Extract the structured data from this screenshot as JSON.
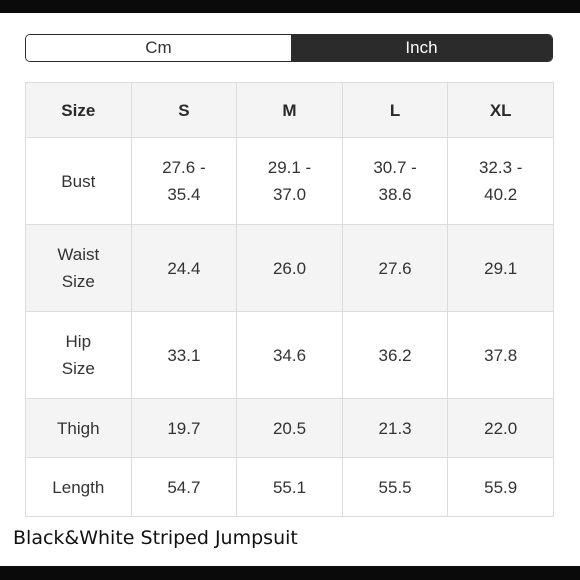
{
  "unit_toggle": {
    "options": [
      "Cm",
      "Inch"
    ],
    "selected": "Inch"
  },
  "colors": {
    "selected_bg": "#2b2b2b",
    "header_bg": "#f4f4f4",
    "border": "#dcdcdc",
    "frame": "#0a0a0a"
  },
  "table": {
    "header": [
      "Size",
      "S",
      "M",
      "L",
      "XL"
    ],
    "rows": [
      {
        "label": [
          "Bust"
        ],
        "values": [
          [
            "27.6 -",
            "35.4"
          ],
          [
            "29.1 -",
            "37.0"
          ],
          [
            "30.7 -",
            "38.6"
          ],
          [
            "32.3 -",
            "40.2"
          ]
        ]
      },
      {
        "label": [
          "Waist",
          "Size"
        ],
        "values": [
          [
            "24.4"
          ],
          [
            "26.0"
          ],
          [
            "27.6"
          ],
          [
            "29.1"
          ]
        ]
      },
      {
        "label": [
          "Hip",
          "Size"
        ],
        "values": [
          [
            "33.1"
          ],
          [
            "34.6"
          ],
          [
            "36.2"
          ],
          [
            "37.8"
          ]
        ]
      },
      {
        "label": [
          "Thigh"
        ],
        "values": [
          [
            "19.7"
          ],
          [
            "20.5"
          ],
          [
            "21.3"
          ],
          [
            "22.0"
          ]
        ]
      },
      {
        "label": [
          "Length"
        ],
        "values": [
          [
            "54.7"
          ],
          [
            "55.1"
          ],
          [
            "55.5"
          ],
          [
            "55.9"
          ]
        ]
      }
    ]
  },
  "product": {
    "title": "Black&White Striped Jumpsuit"
  }
}
